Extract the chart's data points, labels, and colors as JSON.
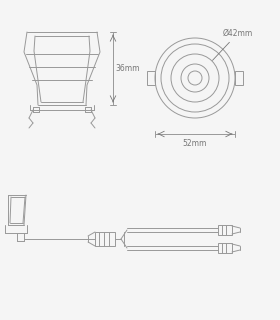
{
  "bg_color": "#f5f5f5",
  "line_color": "#999999",
  "line_width": 0.7,
  "dim_36": "36mm",
  "dim_42": "Ø42mm",
  "dim_52": "52mm",
  "text_color": "#777777",
  "text_fontsize": 5.5
}
